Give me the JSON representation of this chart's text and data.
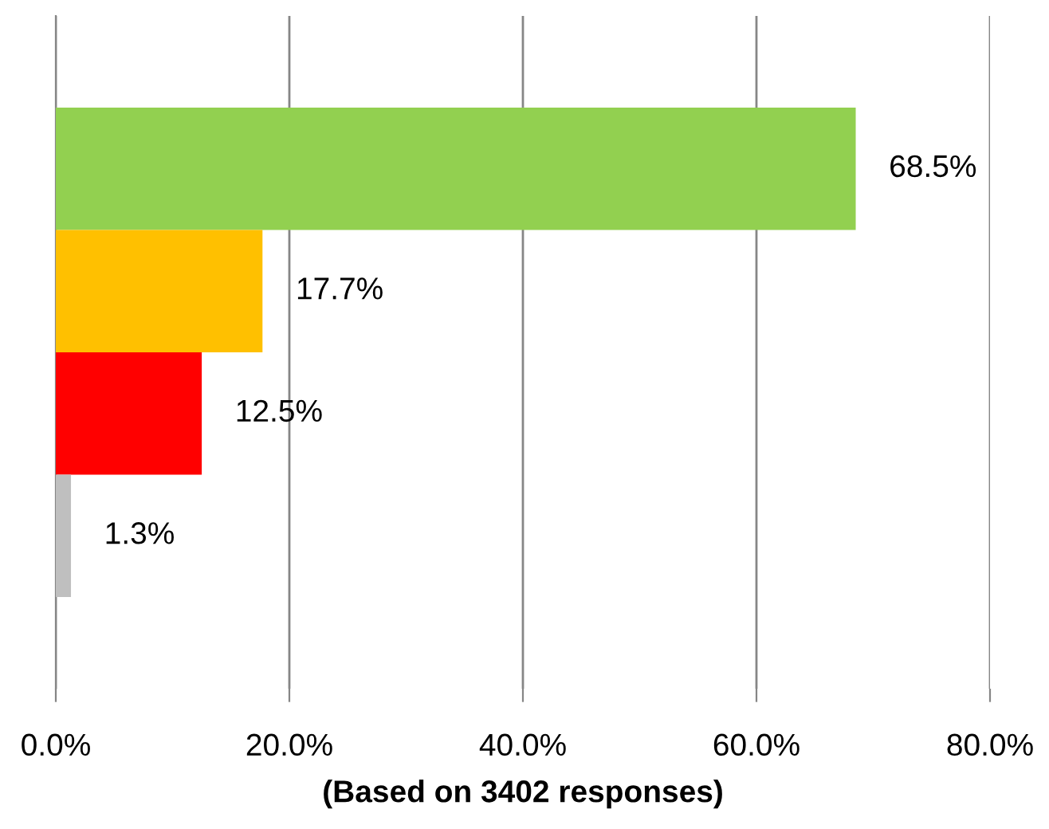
{
  "chart_data": {
    "type": "bar",
    "orientation": "horizontal",
    "xlabel": "(Based on 3402 responses)",
    "categories": [
      null,
      null,
      null,
      null
    ],
    "values": [
      68.5,
      17.7,
      12.5,
      1.3
    ],
    "colors": [
      "#92d050",
      "#ffc000",
      "#ff0000",
      "#bfbfbf"
    ],
    "value_labels": [
      "68.5%",
      "17.7%",
      "12.5%",
      "1.3%"
    ],
    "xlim": [
      0,
      80
    ],
    "xticks": [
      {
        "value": 0,
        "label": "0.0%"
      },
      {
        "value": 20,
        "label": "20.0%"
      },
      {
        "value": 40,
        "label": "40.0%"
      },
      {
        "value": 60,
        "label": "60.0%"
      },
      {
        "value": 80,
        "label": "80.0%"
      }
    ],
    "grid": "x",
    "legend": false
  }
}
